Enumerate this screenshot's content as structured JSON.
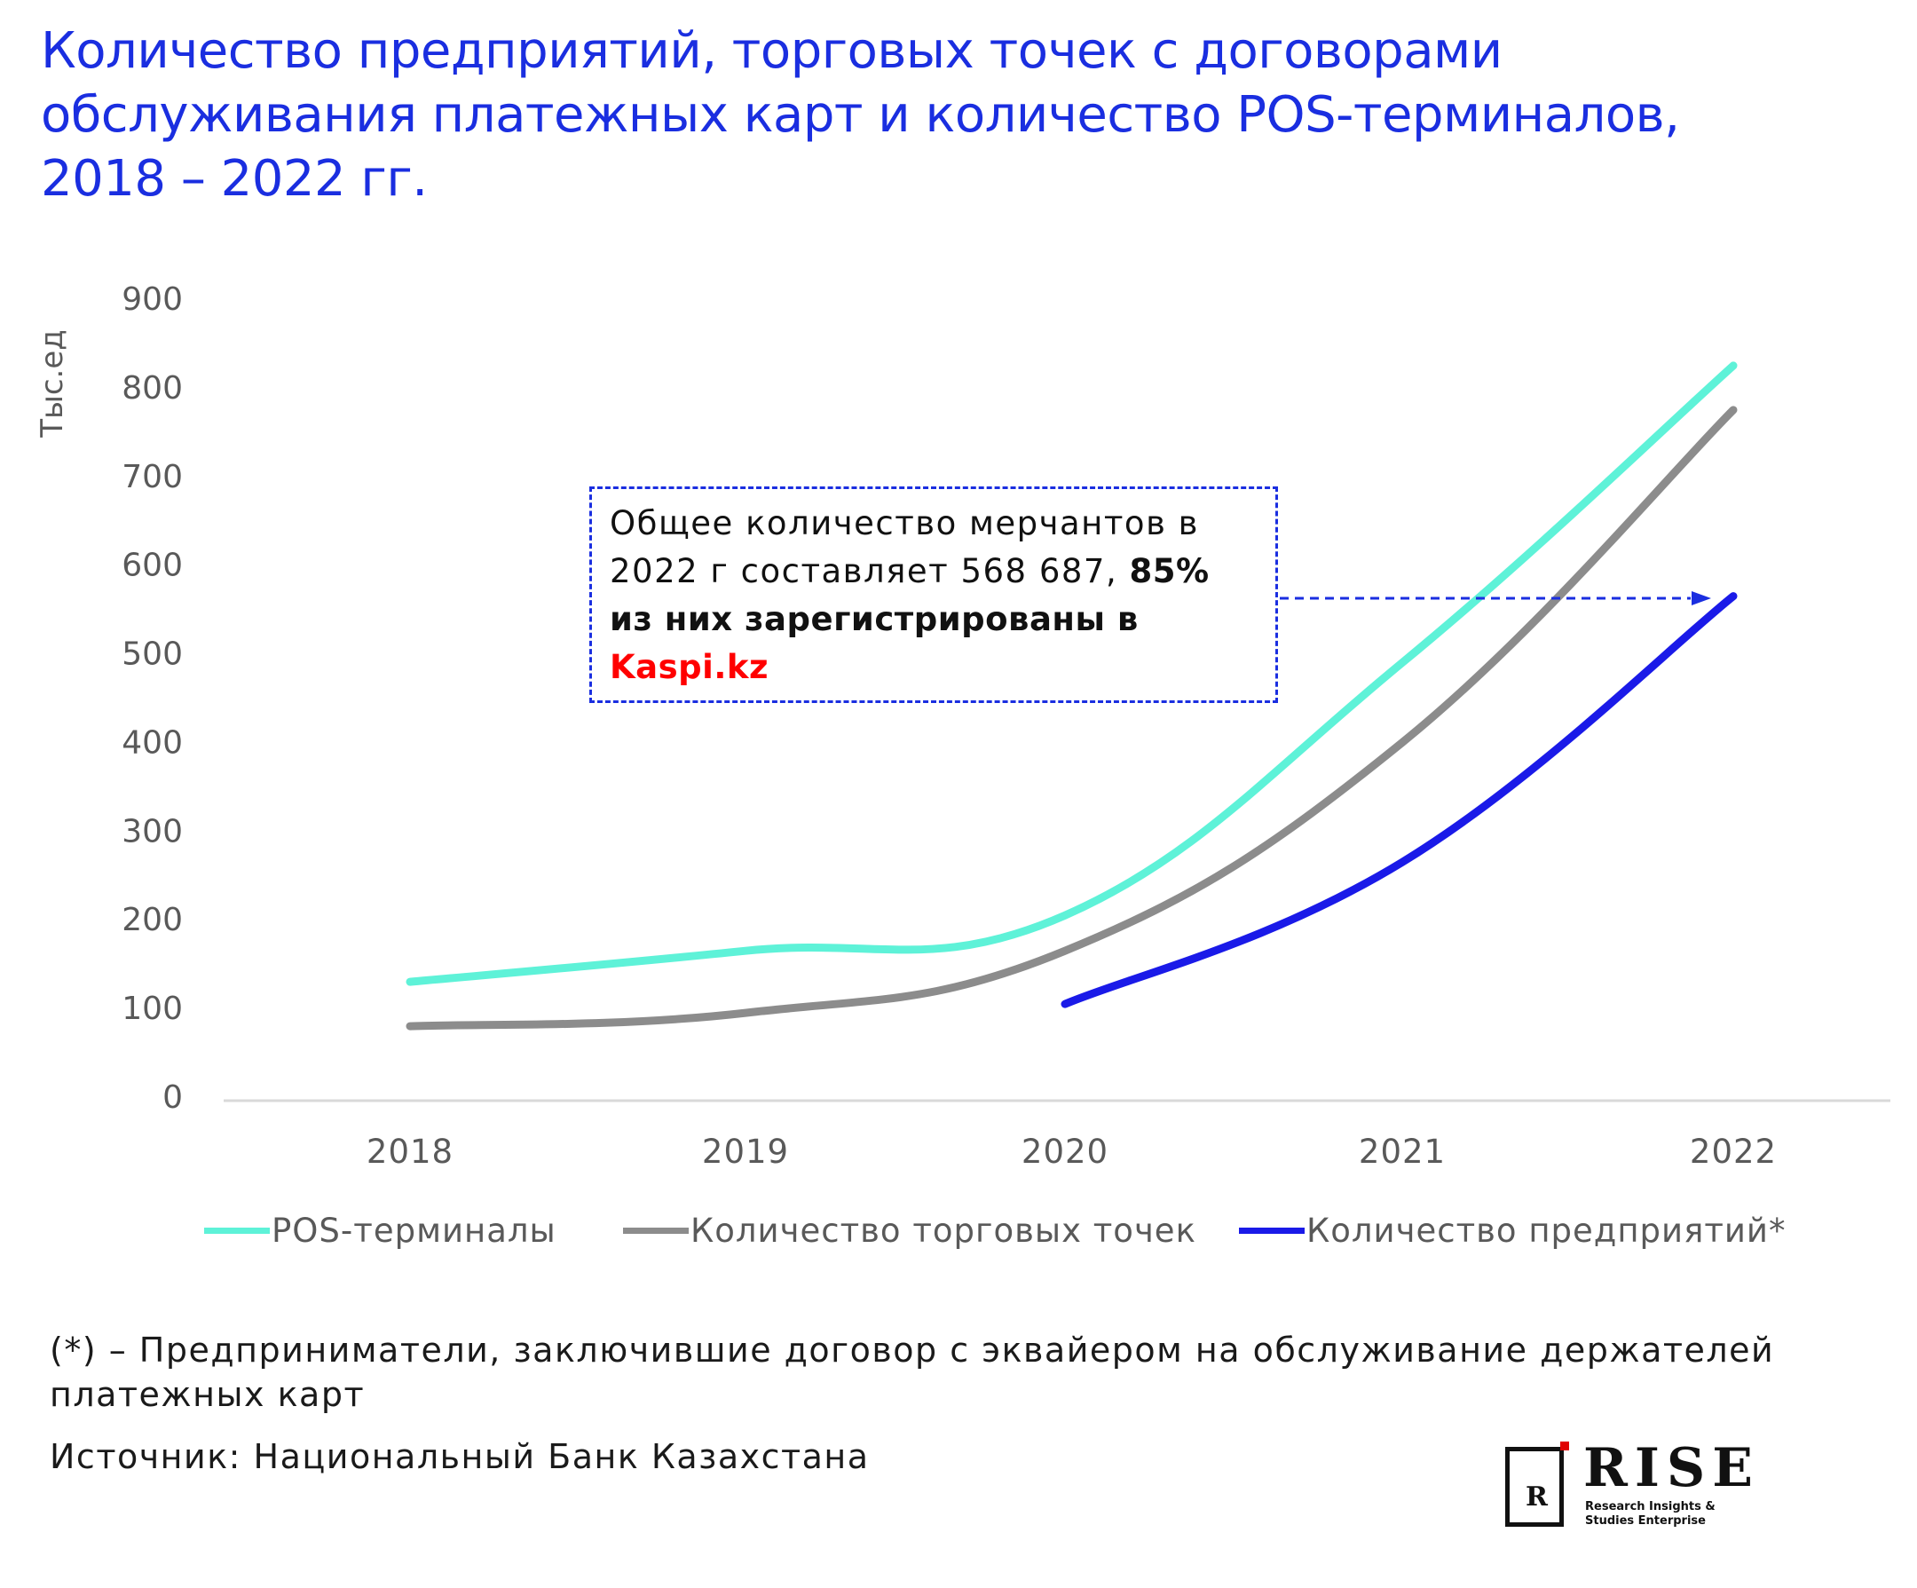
{
  "header": {
    "title_lines": [
      "Количество предприятий, торговых точек с договорами",
      "обслуживания платежных карт и количество POS-терминалов,",
      "2018 – 2022 гг."
    ]
  },
  "chart_data": {
    "type": "line",
    "title": "Количество предприятий, торговых точек с договорами обслуживания платежных карт и количество POS-терминалов, 2018 – 2022 гг.",
    "xlabel": "",
    "ylabel": "Тыс.ед",
    "x": [
      2018,
      2019,
      2020,
      2021,
      2022
    ],
    "ylim": [
      0,
      900
    ],
    "yticks": [
      0,
      100,
      200,
      300,
      400,
      500,
      600,
      700,
      800,
      900
    ],
    "grid": false,
    "legend_position": "bottom",
    "series": [
      {
        "name": "POS-терминалы",
        "color": "#5ef2d8",
        "x": [
          2018,
          2019,
          2020,
          2021,
          2022
        ],
        "values": [
          130,
          165,
          205,
          490,
          825
        ]
      },
      {
        "name": "Количество торговых точек",
        "color": "#8c8c8c",
        "x": [
          2018,
          2019,
          2020,
          2021,
          2022
        ],
        "values": [
          80,
          95,
          165,
          400,
          775
        ]
      },
      {
        "name": "Количество предприятий*",
        "color": "#1a1ae8",
        "x": [
          2020,
          2021,
          2022
        ],
        "values": [
          105,
          265,
          565
        ]
      }
    ],
    "annotation": {
      "text_normal": "Общее количество мерчантов в 2022 г составляет 568 687, ",
      "text_bold": "85% из них зарегистрированы в",
      "text_highlight": "Kaspi.kz",
      "highlight_color": "#ff0000",
      "points_to": {
        "x": 2022,
        "y": 568.687
      }
    }
  },
  "footnote": "(*) – Предприниматели, заключившие договор с эквайером на обслуживание держателей платежных карт",
  "source": "Источник: Национальный Банк Казахстана",
  "logo": {
    "letter": "R",
    "word": "RISE",
    "subtitle_line1": "Research Insights &",
    "subtitle_line2": "Studies Enterprise"
  },
  "colors": {
    "title": "#1a2ee0",
    "axis_text": "#595959",
    "annotation_border": "#1a2ee0"
  }
}
